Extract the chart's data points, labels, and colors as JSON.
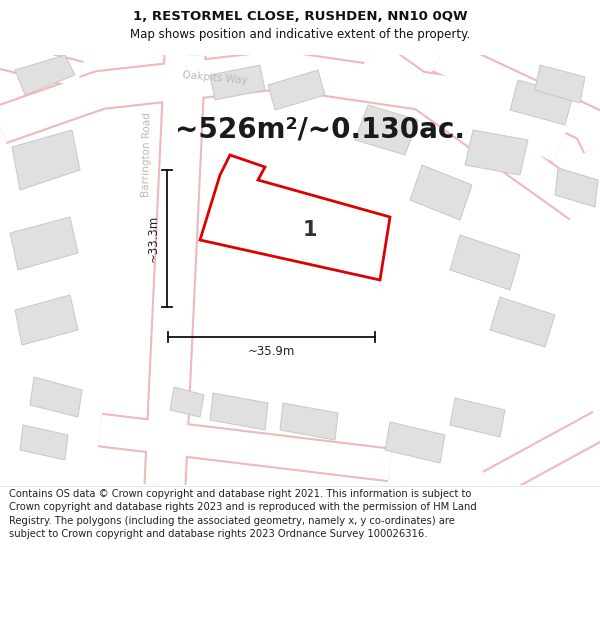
{
  "title_line1": "1, RESTORMEL CLOSE, RUSHDEN, NN10 0QW",
  "title_line2": "Map shows position and indicative extent of the property.",
  "area_text": "~526m²/~0.130ac.",
  "property_label": "1",
  "dim_width": "~35.9m",
  "dim_height": "~33.3m",
  "footer": "Contains OS data © Crown copyright and database right 2021. This information is subject to Crown copyright and database rights 2023 and is reproduced with the permission of HM Land Registry. The polygons (including the associated geometry, namely x, y co-ordinates) are subject to Crown copyright and database rights 2023 Ordnance Survey 100026316.",
  "map_bg": "#f2f0ed",
  "road_fill": "#ffffff",
  "road_edge": "#f0b8b8",
  "building_fill": "#e0e0e0",
  "building_stroke": "#c8c8c8",
  "property_stroke": "#dd0000",
  "property_fill": "#ffffff",
  "dim_color": "#222222",
  "street_label_color": "#c0b8b8",
  "title_color": "#111111",
  "footer_color": "#222222",
  "footer_fontsize": 7.2,
  "title1_fontsize": 9.5,
  "title2_fontsize": 8.5,
  "area_fontsize": 20,
  "label_fontsize": 15
}
